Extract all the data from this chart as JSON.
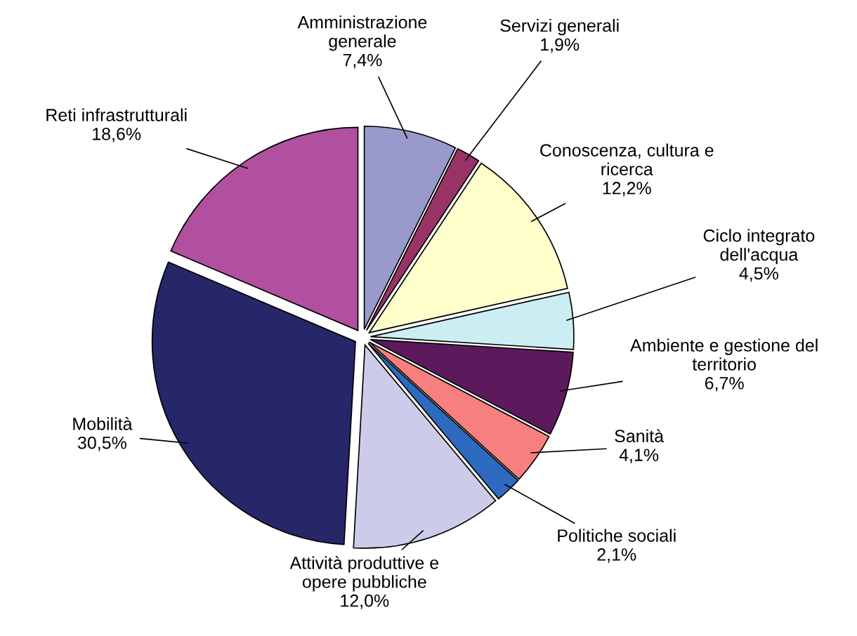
{
  "chart_data": {
    "type": "pie",
    "categories": [
      "Amministrazione\ngenerale",
      "Servizi generali",
      "Conoscenza, cultura e\nricerca",
      "Ciclo integrato\ndell'acqua",
      "Ambiente e gestione del\nterritorio",
      "Sanità",
      "Politiche sociali",
      "Attività produttive e\nopere pubbliche",
      "Mobilità",
      "Reti infrastrutturali"
    ],
    "values": [
      7.4,
      1.9,
      12.2,
      4.5,
      6.7,
      4.1,
      2.1,
      12.0,
      30.5,
      18.6
    ],
    "value_labels": [
      "7,4%",
      "1,9%",
      "12,2%",
      "4,5%",
      "6,7%",
      "4,1%",
      "2,1%",
      "12,0%",
      "30,5%",
      "18,6%"
    ],
    "colors": [
      "#9999cc",
      "#993366",
      "#ffffcc",
      "#cceef2",
      "#5c1a5c",
      "#f77f7f",
      "#2e6bc0",
      "#ccccea",
      "#262669",
      "#b0509e"
    ]
  }
}
